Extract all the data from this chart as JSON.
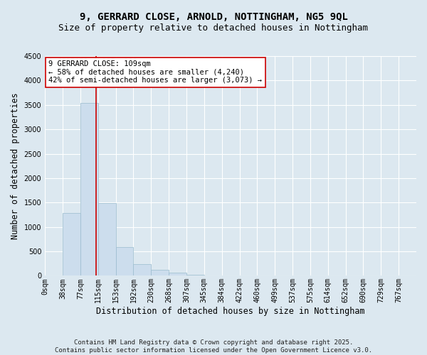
{
  "title": "9, GERRARD CLOSE, ARNOLD, NOTTINGHAM, NG5 9QL",
  "subtitle": "Size of property relative to detached houses in Nottingham",
  "xlabel": "Distribution of detached houses by size in Nottingham",
  "ylabel": "Number of detached properties",
  "bin_labels": [
    "0sqm",
    "38sqm",
    "77sqm",
    "115sqm",
    "153sqm",
    "192sqm",
    "230sqm",
    "268sqm",
    "307sqm",
    "345sqm",
    "384sqm",
    "422sqm",
    "460sqm",
    "499sqm",
    "537sqm",
    "575sqm",
    "614sqm",
    "652sqm",
    "690sqm",
    "729sqm",
    "767sqm"
  ],
  "bar_values": [
    0,
    1280,
    3540,
    1490,
    590,
    240,
    120,
    70,
    20,
    5,
    2,
    0,
    0,
    0,
    0,
    0,
    0,
    0,
    0,
    0,
    0
  ],
  "bar_color": "#ccdded",
  "bar_edge_color": "#9abcce",
  "vline_x_bin": 2.88,
  "vline_color": "#cc0000",
  "ylim": [
    0,
    4500
  ],
  "yticks": [
    0,
    500,
    1000,
    1500,
    2000,
    2500,
    3000,
    3500,
    4000,
    4500
  ],
  "annotation_line1": "9 GERRARD CLOSE: 109sqm",
  "annotation_line2": "← 58% of detached houses are smaller (4,240)",
  "annotation_line3": "42% of semi-detached houses are larger (3,073) →",
  "annotation_box_color": "#ffffff",
  "annotation_box_edge": "#cc0000",
  "footer_line1": "Contains HM Land Registry data © Crown copyright and database right 2025.",
  "footer_line2": "Contains public sector information licensed under the Open Government Licence v3.0.",
  "background_color": "#dce8f0",
  "grid_color": "#ffffff",
  "title_fontsize": 10,
  "subtitle_fontsize": 9,
  "axis_label_fontsize": 8.5,
  "tick_fontsize": 7,
  "annotation_fontsize": 7.5,
  "footer_fontsize": 6.5
}
